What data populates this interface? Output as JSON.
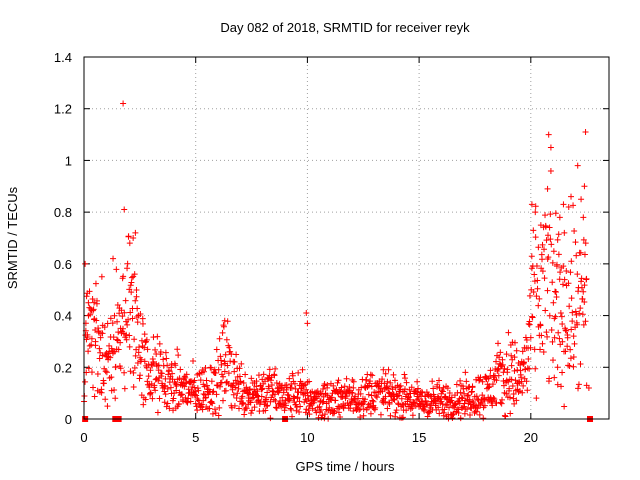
{
  "chart_data": {
    "type": "scatter",
    "title": "Day 082 of 2018, SRMTID for receiver reyk",
    "xlabel": "GPS time / hours",
    "ylabel": "SRMTID / TECUs",
    "xlim": [
      0,
      23.5
    ],
    "ylim": [
      0,
      1.4
    ],
    "x_ticks": [
      0,
      5,
      10,
      15,
      20
    ],
    "y_ticks": [
      0,
      0.2,
      0.4,
      0.6,
      0.8,
      1,
      1.2,
      1.4
    ],
    "x_tick_labels": [
      "0",
      "5",
      "10",
      "15",
      "20"
    ],
    "y_tick_labels": [
      "0",
      "0.2",
      "0.4",
      "0.6",
      "0.8",
      "1",
      "1.2",
      "1.4"
    ],
    "grid": true,
    "marker": "+",
    "color": "#ff0000",
    "series": [
      {
        "name": "SRMTID",
        "description_profile": "baseline envelope (hours, TECU) around which dense '+' samples are scattered",
        "profile": [
          [
            0.0,
            0.3
          ],
          [
            0.3,
            0.35
          ],
          [
            0.6,
            0.3
          ],
          [
            0.9,
            0.2
          ],
          [
            1.2,
            0.28
          ],
          [
            1.5,
            0.3
          ],
          [
            1.8,
            0.38
          ],
          [
            2.1,
            0.42
          ],
          [
            2.4,
            0.35
          ],
          [
            2.7,
            0.2
          ],
          [
            3.0,
            0.18
          ],
          [
            3.5,
            0.16
          ],
          [
            4.0,
            0.13
          ],
          [
            4.5,
            0.12
          ],
          [
            5.0,
            0.1
          ],
          [
            5.5,
            0.12
          ],
          [
            6.0,
            0.14
          ],
          [
            6.3,
            0.22
          ],
          [
            6.6,
            0.18
          ],
          [
            7.0,
            0.12
          ],
          [
            7.5,
            0.1
          ],
          [
            8.0,
            0.11
          ],
          [
            8.5,
            0.1
          ],
          [
            9.0,
            0.08
          ],
          [
            9.5,
            0.1
          ],
          [
            10.0,
            0.09
          ],
          [
            10.5,
            0.07
          ],
          [
            11.0,
            0.07
          ],
          [
            11.5,
            0.08
          ],
          [
            12.0,
            0.08
          ],
          [
            12.5,
            0.1
          ],
          [
            13.0,
            0.1
          ],
          [
            13.5,
            0.09
          ],
          [
            14.0,
            0.09
          ],
          [
            14.5,
            0.08
          ],
          [
            15.0,
            0.07
          ],
          [
            15.5,
            0.07
          ],
          [
            16.0,
            0.07
          ],
          [
            16.5,
            0.07
          ],
          [
            17.0,
            0.08
          ],
          [
            17.5,
            0.09
          ],
          [
            18.0,
            0.1
          ],
          [
            18.5,
            0.15
          ],
          [
            19.0,
            0.18
          ],
          [
            19.5,
            0.15
          ],
          [
            19.8,
            0.22
          ],
          [
            20.1,
            0.4
          ],
          [
            20.5,
            0.5
          ],
          [
            21.0,
            0.48
          ],
          [
            21.5,
            0.45
          ],
          [
            22.0,
            0.42
          ],
          [
            22.3,
            0.4
          ],
          [
            22.5,
            0.45
          ]
        ],
        "outliers": [
          [
            1.75,
            1.22
          ],
          [
            1.8,
            0.81
          ],
          [
            2.2,
            0.7
          ],
          [
            2.3,
            0.72
          ],
          [
            2.05,
            0.68
          ],
          [
            0.05,
            0.6
          ],
          [
            1.3,
            0.62
          ],
          [
            1.05,
            0.05
          ],
          [
            6.3,
            0.38
          ],
          [
            9.95,
            0.41
          ],
          [
            10.0,
            0.37
          ],
          [
            20.05,
            0.83
          ],
          [
            20.2,
            0.8
          ],
          [
            20.45,
            0.75
          ],
          [
            20.8,
            1.1
          ],
          [
            20.9,
            1.05
          ],
          [
            20.75,
            0.89
          ],
          [
            21.3,
            0.78
          ],
          [
            21.5,
            0.72
          ],
          [
            21.8,
            0.86
          ],
          [
            22.1,
            0.98
          ],
          [
            22.25,
            0.85
          ],
          [
            22.45,
            1.11
          ],
          [
            22.4,
            0.9
          ],
          [
            22.35,
            0.78
          ],
          [
            22.5,
            0.13
          ],
          [
            22.6,
            0.12
          ],
          [
            21.2,
            0.2
          ],
          [
            21.4,
            0.18
          ],
          [
            21.05,
            0.16
          ],
          [
            0.1,
            0.18
          ],
          [
            0.2,
            0.4
          ],
          [
            0.45,
            0.45
          ],
          [
            0.8,
            0.55
          ]
        ],
        "boxes": [
          [
            0.05,
            0.0
          ],
          [
            1.4,
            0.0
          ],
          [
            1.55,
            0.0
          ],
          [
            9.0,
            0.0
          ],
          [
            22.65,
            0.0
          ]
        ]
      }
    ]
  }
}
